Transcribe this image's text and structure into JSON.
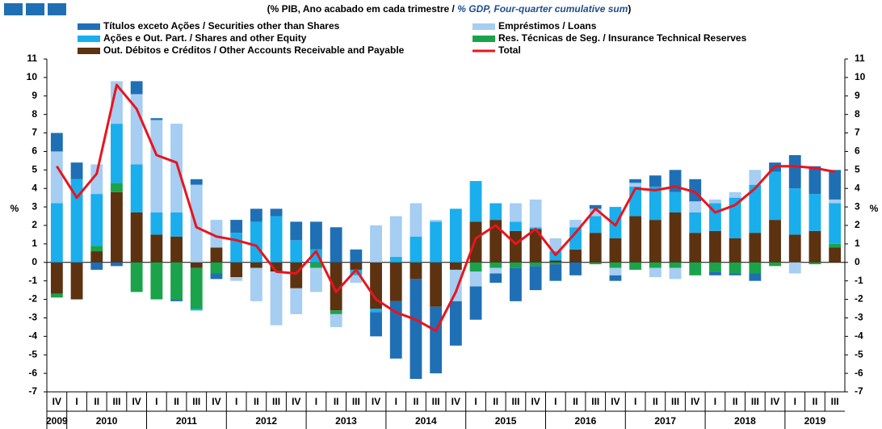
{
  "chart_data": {
    "type": "stacked-bar-line",
    "title_parts": [
      "(% PIB, Ano acabado em cada trimestre / ",
      "% GDP, Four-quarter cumulative sum",
      ")"
    ],
    "y_label": "%",
    "y2_label": "%",
    "ylim": [
      -7,
      11
    ],
    "yticks": [
      -7,
      -6,
      -5,
      -4,
      -3,
      -2,
      -1,
      0,
      1,
      2,
      3,
      4,
      5,
      6,
      7,
      8,
      9,
      10,
      11
    ],
    "y2lim": [
      -7,
      11
    ],
    "y2ticks": [
      -7,
      -6,
      -5,
      -4,
      -3,
      -2,
      -1,
      0,
      1,
      2,
      3,
      4,
      5,
      6,
      7,
      8,
      9,
      10,
      11
    ],
    "groups": [
      {
        "label": "2009",
        "quarters": [
          "IV"
        ]
      },
      {
        "label": "2010",
        "quarters": [
          "I",
          "II",
          "III",
          "IV"
        ]
      },
      {
        "label": "2011",
        "quarters": [
          "I",
          "II",
          "III",
          "IV"
        ]
      },
      {
        "label": "2012",
        "quarters": [
          "I",
          "II",
          "III",
          "IV"
        ]
      },
      {
        "label": "2013",
        "quarters": [
          "I",
          "II",
          "III",
          "IV"
        ]
      },
      {
        "label": "2014",
        "quarters": [
          "I",
          "II",
          "III",
          "IV"
        ]
      },
      {
        "label": "2015",
        "quarters": [
          "I",
          "II",
          "III",
          "IV"
        ]
      },
      {
        "label": "2016",
        "quarters": [
          "I",
          "II",
          "III",
          "IV"
        ]
      },
      {
        "label": "2017",
        "quarters": [
          "I",
          "II",
          "III",
          "IV"
        ]
      },
      {
        "label": "2018",
        "quarters": [
          "I",
          "II",
          "III",
          "IV"
        ]
      },
      {
        "label": "2019",
        "quarters": [
          "I",
          "II",
          "III"
        ]
      }
    ],
    "series": [
      {
        "name": "Out. Débitos e Créditos / Other Accounts Receivable and Payable",
        "color": "#5c3211",
        "kind": "bar",
        "values": [
          -1.7,
          -2.0,
          0.6,
          3.8,
          2.7,
          1.5,
          1.4,
          -0.3,
          0.8,
          -0.8,
          -0.3,
          -0.5,
          -1.4,
          0,
          -2.6,
          -0.4,
          -2.5,
          -2.1,
          -0.9,
          -2.4,
          -0.4,
          2.2,
          2.3,
          1.7,
          1.8,
          0.1,
          0.7,
          1.6,
          1.3,
          2.5,
          2.3,
          2.7,
          1.6,
          1.7,
          1.3,
          1.6,
          2.3,
          1.5,
          1.7,
          0.8
        ]
      },
      {
        "name": "Res. Técnicas de Seg. / Insurance Technical Reserves",
        "color": "#1aa34a",
        "kind": "bar",
        "values": [
          -0.2,
          0,
          0.3,
          0.5,
          -1.6,
          -2.0,
          -2.0,
          -2.2,
          -0.6,
          0,
          0,
          0,
          0,
          -0.3,
          -0.2,
          0,
          0,
          0,
          0,
          0,
          0,
          -0.5,
          -0.3,
          -0.3,
          -0.2,
          -0.1,
          0,
          -0.1,
          -0.3,
          -0.4,
          -0.3,
          -0.3,
          -0.7,
          -0.5,
          -0.6,
          -0.6,
          -0.2,
          0,
          -0.1,
          0.2
        ]
      },
      {
        "name": "Ações e Out. Part. / Shares and other Equity",
        "color": "#1aaeed",
        "kind": "bar",
        "values": [
          3.2,
          4.5,
          2.8,
          3.2,
          2.6,
          1.2,
          1.3,
          -0.1,
          0,
          1.6,
          2.2,
          2.5,
          1.2,
          0.7,
          0,
          -0.3,
          -0.2,
          0.3,
          1.4,
          2.2,
          2.9,
          2.2,
          0.9,
          0.5,
          0.1,
          0.5,
          1.2,
          0.9,
          1.7,
          1.6,
          1.8,
          1.1,
          1.1,
          1.5,
          2.2,
          2.6,
          2.6,
          2.5,
          2.0,
          2.2
        ]
      },
      {
        "name": "Empréstimos / Loans",
        "color": "#a6cdf2",
        "kind": "bar",
        "values": [
          2.8,
          0,
          1.6,
          2.3,
          3.8,
          5.0,
          4.8,
          4.2,
          1.5,
          -0.2,
          -1.8,
          -2.9,
          -1.4,
          -1.3,
          -0.7,
          -0.4,
          2.0,
          2.2,
          1.8,
          0.1,
          -1.7,
          -0.8,
          -0.3,
          1.0,
          1.5,
          0.7,
          0.4,
          0.4,
          -0.4,
          0.2,
          -0.5,
          -0.6,
          0.6,
          0.2,
          0.3,
          0.8,
          0,
          -0.6,
          0,
          0.2
        ]
      },
      {
        "name": "Títulos exceto Ações / Securities other than Shares",
        "color": "#1f6fb5",
        "kind": "bar",
        "values": [
          1.0,
          0.9,
          -0.4,
          -0.2,
          0.7,
          0.1,
          -0.1,
          0.3,
          -0.3,
          0.7,
          0.7,
          0.4,
          1.0,
          1.5,
          1.9,
          0.7,
          -1.3,
          -3.1,
          -5.4,
          -3.6,
          -2.4,
          -1.8,
          -0.5,
          -1.8,
          -1.3,
          -0.9,
          -0.7,
          0.2,
          -0.3,
          0.2,
          0.6,
          1.2,
          1.2,
          -0.2,
          -0.1,
          -0.4,
          0.5,
          1.8,
          1.5,
          1.6
        ]
      },
      {
        "name": "Total",
        "color": "#e8141e",
        "kind": "line",
        "values": [
          5.2,
          3.5,
          4.8,
          9.6,
          8.3,
          5.8,
          5.4,
          1.9,
          1.4,
          1.2,
          0.9,
          -0.5,
          -0.6,
          0.6,
          -1.6,
          -0.4,
          -2.0,
          -2.7,
          -3.1,
          -3.7,
          -1.6,
          1.3,
          2.0,
          1.0,
          1.8,
          0.4,
          1.6,
          2.9,
          2.0,
          4.0,
          3.9,
          4.1,
          3.8,
          2.7,
          3.1,
          4.0,
          5.2,
          5.2,
          5.1,
          4.9
        ]
      }
    ]
  }
}
